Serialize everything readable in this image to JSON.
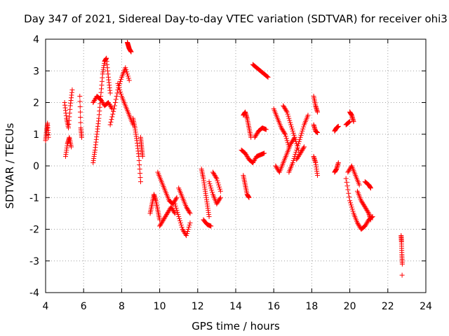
{
  "chart_data": {
    "type": "scatter",
    "title": "Day 347 of 2021, Sidereal Day-to-day VTEC variation (SDTVAR) for receiver ohi3",
    "xlabel": "GPS time / hours",
    "ylabel": "SDTVAR / TECUs",
    "xlim": [
      4,
      24
    ],
    "ylim": [
      -4,
      4
    ],
    "xticks": [
      4,
      6,
      8,
      10,
      12,
      14,
      16,
      18,
      20,
      22,
      24
    ],
    "yticks": [
      -4,
      -3,
      -2,
      -1,
      0,
      1,
      2,
      3,
      4
    ],
    "grid": true,
    "marker": "plus",
    "series_color": "#ff0000",
    "segments": [
      {
        "x": [
          4.0,
          4.05,
          4.1,
          4.15
        ],
        "y": [
          0.8,
          1.1,
          1.35,
          0.9
        ]
      },
      {
        "x": [
          5.0,
          5.1,
          5.2,
          5.3,
          5.4
        ],
        "y": [
          2.0,
          1.5,
          1.2,
          1.9,
          2.4
        ]
      },
      {
        "x": [
          5.05,
          5.15,
          5.25,
          5.35
        ],
        "y": [
          0.3,
          0.7,
          0.9,
          0.6
        ]
      },
      {
        "x": [
          5.8,
          5.85,
          5.9
        ],
        "y": [
          2.2,
          1.2,
          0.9
        ]
      },
      {
        "x": [
          6.5,
          6.6,
          6.7,
          6.8,
          6.9,
          7.0,
          7.1,
          7.2,
          7.3,
          7.4
        ],
        "y": [
          0.1,
          0.5,
          1.0,
          1.5,
          2.2,
          2.9,
          3.3,
          3.4,
          2.8,
          2.3
        ]
      },
      {
        "x": [
          6.5,
          6.7,
          6.9,
          7.1,
          7.3,
          7.5
        ],
        "y": [
          2.0,
          2.2,
          2.1,
          1.9,
          2.0,
          1.8
        ]
      },
      {
        "x": [
          7.4,
          7.6,
          7.8,
          8.0,
          8.2,
          8.4
        ],
        "y": [
          1.3,
          1.8,
          2.4,
          2.8,
          3.1,
          2.7
        ]
      },
      {
        "x": [
          7.8,
          8.0,
          8.2,
          8.4,
          8.6
        ],
        "y": [
          2.6,
          2.2,
          1.9,
          1.6,
          1.3
        ]
      },
      {
        "x": [
          8.3,
          8.35,
          8.4,
          8.5
        ],
        "y": [
          3.9,
          3.8,
          3.7,
          3.6
        ]
      },
      {
        "x": [
          8.6,
          8.7,
          8.8,
          8.9,
          9.0
        ],
        "y": [
          1.5,
          1.2,
          0.8,
          0.3,
          -0.5
        ]
      },
      {
        "x": [
          9.0,
          9.05,
          9.1
        ],
        "y": [
          0.9,
          0.6,
          0.3
        ]
      },
      {
        "x": [
          9.5,
          9.6,
          9.7,
          9.8,
          9.9,
          10.0
        ],
        "y": [
          -1.5,
          -1.2,
          -0.9,
          -1.1,
          -1.4,
          -1.7
        ]
      },
      {
        "x": [
          9.9,
          10.1,
          10.3,
          10.5,
          10.7,
          10.9
        ],
        "y": [
          -0.2,
          -0.5,
          -0.8,
          -1.1,
          -1.2,
          -1.0
        ]
      },
      {
        "x": [
          10.0,
          10.2,
          10.4,
          10.6,
          10.8
        ],
        "y": [
          -1.9,
          -1.7,
          -1.5,
          -1.3,
          -1.5
        ]
      },
      {
        "x": [
          10.8,
          11.0,
          11.2,
          11.4,
          11.6
        ],
        "y": [
          -1.2,
          -1.6,
          -2.0,
          -2.2,
          -1.8
        ]
      },
      {
        "x": [
          11.0,
          11.2,
          11.4,
          11.6
        ],
        "y": [
          -0.7,
          -1.0,
          -1.3,
          -1.5
        ]
      },
      {
        "x": [
          12.2,
          12.3,
          12.4,
          12.5,
          12.6
        ],
        "y": [
          -0.1,
          -0.4,
          -0.8,
          -1.2,
          -1.6
        ]
      },
      {
        "x": [
          12.3,
          12.5,
          12.7
        ],
        "y": [
          -1.7,
          -1.85,
          -1.9
        ]
      },
      {
        "x": [
          12.6,
          12.8,
          13.0,
          13.2
        ],
        "y": [
          -0.5,
          -0.9,
          -1.2,
          -1.0
        ]
      },
      {
        "x": [
          12.8,
          13.0,
          13.2
        ],
        "y": [
          -0.2,
          -0.4,
          -0.8
        ]
      },
      {
        "x": [
          14.4,
          14.5,
          14.6,
          14.7,
          14.8
        ],
        "y": [
          1.6,
          1.7,
          1.5,
          1.2,
          0.9
        ]
      },
      {
        "x": [
          14.3,
          14.5,
          14.7,
          14.9
        ],
        "y": [
          0.5,
          0.4,
          0.2,
          0.1
        ]
      },
      {
        "x": [
          14.4,
          14.5,
          14.6,
          14.7
        ],
        "y": [
          -0.3,
          -0.6,
          -0.9,
          -1.0
        ]
      },
      {
        "x": [
          14.9,
          15.1,
          15.3,
          15.5,
          15.7
        ],
        "y": [
          3.2,
          3.1,
          3.0,
          2.9,
          2.8
        ]
      },
      {
        "x": [
          15.0,
          15.2,
          15.4,
          15.6
        ],
        "y": [
          0.9,
          1.1,
          1.2,
          1.15
        ]
      },
      {
        "x": [
          14.9,
          15.1,
          15.3,
          15.5
        ],
        "y": [
          0.1,
          0.3,
          0.35,
          0.4
        ]
      },
      {
        "x": [
          16.0,
          16.2,
          16.4,
          16.6,
          16.8
        ],
        "y": [
          1.8,
          1.5,
          1.2,
          1.0,
          0.6
        ]
      },
      {
        "x": [
          16.5,
          16.7,
          16.9,
          17.1,
          17.3
        ],
        "y": [
          1.9,
          1.7,
          1.3,
          0.9,
          0.5
        ]
      },
      {
        "x": [
          16.1,
          16.3,
          16.5,
          16.7,
          16.9,
          17.1
        ],
        "y": [
          0.0,
          -0.2,
          0.1,
          0.4,
          0.7,
          0.9
        ]
      },
      {
        "x": [
          16.8,
          17.0,
          17.2,
          17.4,
          17.6,
          17.8
        ],
        "y": [
          -0.2,
          0.1,
          0.5,
          0.9,
          1.3,
          1.6
        ]
      },
      {
        "x": [
          17.2,
          17.4,
          17.6
        ],
        "y": [
          0.2,
          0.4,
          0.6
        ]
      },
      {
        "x": [
          18.1,
          18.2,
          18.3
        ],
        "y": [
          2.2,
          1.9,
          1.7
        ]
      },
      {
        "x": [
          18.1,
          18.2,
          18.3
        ],
        "y": [
          1.3,
          1.1,
          1.05
        ]
      },
      {
        "x": [
          18.1,
          18.2,
          18.3
        ],
        "y": [
          0.3,
          0.1,
          -0.3
        ]
      },
      {
        "x": [
          19.2,
          19.3,
          19.4
        ],
        "y": [
          1.1,
          1.2,
          1.25
        ]
      },
      {
        "x": [
          19.2,
          19.3,
          19.4
        ],
        "y": [
          -0.2,
          -0.1,
          0.1
        ]
      },
      {
        "x": [
          19.8,
          19.9,
          20.0
        ],
        "y": [
          1.3,
          1.35,
          1.4
        ]
      },
      {
        "x": [
          20.0,
          20.1,
          20.2
        ],
        "y": [
          1.7,
          1.6,
          1.4
        ]
      },
      {
        "x": [
          19.9,
          20.1,
          20.3,
          20.5
        ],
        "y": [
          -0.2,
          0.0,
          -0.3,
          -0.6
        ]
      },
      {
        "x": [
          19.8,
          20.0,
          20.2,
          20.4,
          20.6,
          20.8,
          21.0,
          21.2
        ],
        "y": [
          -0.4,
          -1.1,
          -1.5,
          -1.8,
          -2.0,
          -1.9,
          -1.7,
          -1.6
        ]
      },
      {
        "x": [
          20.4,
          20.6,
          20.8,
          21.0,
          21.1
        ],
        "y": [
          -0.8,
          -1.1,
          -1.3,
          -1.5,
          -1.7
        ]
      },
      {
        "x": [
          20.8,
          21.0,
          21.1
        ],
        "y": [
          -0.5,
          -0.6,
          -0.7
        ]
      },
      {
        "x": [
          22.7,
          22.72,
          22.74,
          22.76
        ],
        "y": [
          -2.2,
          -2.4,
          -2.8,
          -3.1
        ]
      },
      {
        "x": [
          22.75
        ],
        "y": [
          -3.45
        ]
      }
    ]
  }
}
